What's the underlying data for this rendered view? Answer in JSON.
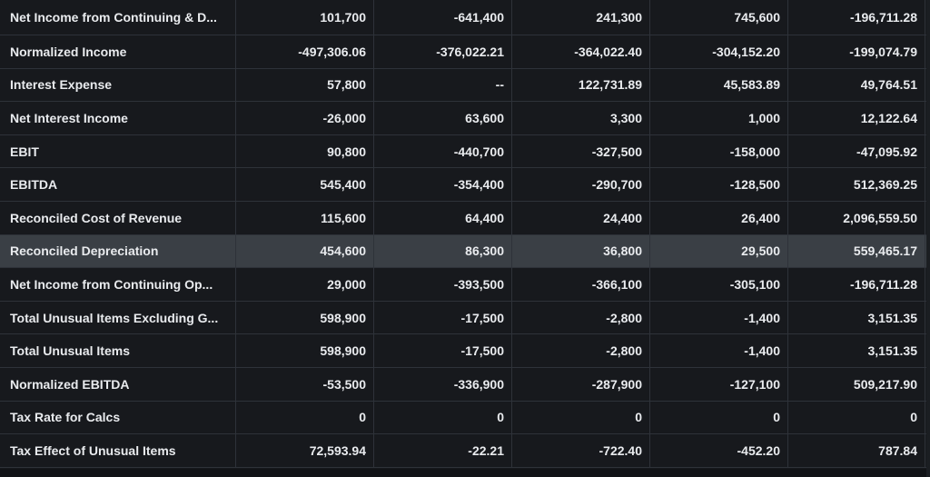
{
  "rows": [
    {
      "label": "Net Income from Continuing & D...",
      "values": [
        "101,700",
        "-641,400",
        "241,300",
        "745,600",
        "-196,711.28"
      ]
    },
    {
      "label": "Normalized Income",
      "values": [
        "-497,306.06",
        "-376,022.21",
        "-364,022.40",
        "-304,152.20",
        "-199,074.79"
      ]
    },
    {
      "label": "Interest Expense",
      "values": [
        "57,800",
        "--",
        "122,731.89",
        "45,583.89",
        "49,764.51"
      ]
    },
    {
      "label": "Net Interest Income",
      "values": [
        "-26,000",
        "63,600",
        "3,300",
        "1,000",
        "12,122.64"
      ]
    },
    {
      "label": "EBIT",
      "values": [
        "90,800",
        "-440,700",
        "-327,500",
        "-158,000",
        "-47,095.92"
      ]
    },
    {
      "label": "EBITDA",
      "values": [
        "545,400",
        "-354,400",
        "-290,700",
        "-128,500",
        "512,369.25"
      ]
    },
    {
      "label": "Reconciled Cost of Revenue",
      "values": [
        "115,600",
        "64,400",
        "24,400",
        "26,400",
        "2,096,559.50"
      ]
    },
    {
      "label": "Reconciled Depreciation",
      "values": [
        "454,600",
        "86,300",
        "36,800",
        "29,500",
        "559,465.17"
      ],
      "highlighted": true
    },
    {
      "label": "Net Income from Continuing Op...",
      "values": [
        "29,000",
        "-393,500",
        "-366,100",
        "-305,100",
        "-196,711.28"
      ]
    },
    {
      "label": "Total Unusual Items Excluding G...",
      "values": [
        "598,900",
        "-17,500",
        "-2,800",
        "-1,400",
        "3,151.35"
      ]
    },
    {
      "label": "Total Unusual Items",
      "values": [
        "598,900",
        "-17,500",
        "-2,800",
        "-1,400",
        "3,151.35"
      ]
    },
    {
      "label": "Normalized EBITDA",
      "values": [
        "-53,500",
        "-336,900",
        "-287,900",
        "-127,100",
        "509,217.90"
      ]
    },
    {
      "label": "Tax Rate for Calcs",
      "values": [
        "0",
        "0",
        "0",
        "0",
        "0"
      ]
    },
    {
      "label": "Tax Effect of Unusual Items",
      "values": [
        "72,593.94",
        "-22.21",
        "-722.40",
        "-452.20",
        "787.84"
      ]
    }
  ]
}
